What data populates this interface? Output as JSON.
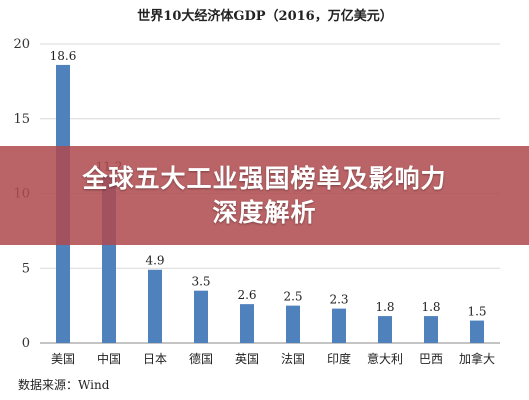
{
  "chart_data": {
    "type": "bar",
    "title": "世界10大经济体GDP（2016，万亿美元）",
    "categories": [
      "美国",
      "中国",
      "日本",
      "德国",
      "英国",
      "法国",
      "印度",
      "意大利",
      "巴西",
      "加拿大"
    ],
    "values": [
      18.6,
      11.2,
      4.9,
      3.5,
      2.6,
      2.5,
      2.3,
      1.8,
      1.8,
      1.5
    ],
    "value_labels": [
      "18.6",
      "11.2",
      "4.9",
      "3.5",
      "2.6",
      "2.5",
      "2.3",
      "1.8",
      "1.8",
      "1.5"
    ],
    "yticks": [
      "0",
      "5",
      "10",
      "15",
      "20"
    ],
    "ylim": [
      0,
      20
    ],
    "xlabel": "",
    "ylabel": "",
    "grid": true,
    "bar_color": "#4f81bd"
  },
  "overlay": {
    "line1": "全球五大工业强国榜单及影响力",
    "line2": "深度解析",
    "color": "#b04a4e"
  },
  "source": "数据来源：Wind"
}
